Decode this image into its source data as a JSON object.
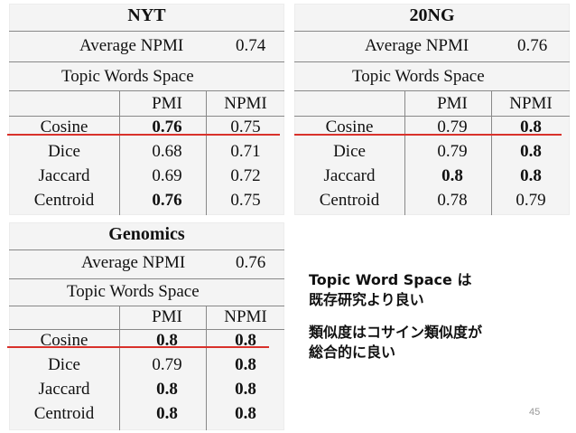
{
  "tables": [
    {
      "title": "NYT",
      "average_label": "Average NPMI",
      "average_value": "0.74",
      "space_label": "Topic Words Space",
      "col_pmi": "PMI",
      "col_npmi": "NPMI",
      "rows": [
        {
          "name": "Cosine",
          "pmi": "0.76",
          "npmi": "0.75"
        },
        {
          "name": "Dice",
          "pmi": "0.68",
          "npmi": "0.71"
        },
        {
          "name": "Jaccard",
          "pmi": "0.69",
          "npmi": "0.72"
        },
        {
          "name": "Centroid",
          "pmi": "0.76",
          "npmi": "0.75"
        }
      ]
    },
    {
      "title": "20NG",
      "average_label": "Average NPMI",
      "average_value": "0.76",
      "space_label": "Topic Words Space",
      "col_pmi": "PMI",
      "col_npmi": "NPMI",
      "rows": [
        {
          "name": "Cosine",
          "pmi": "0.79",
          "npmi": "0.8"
        },
        {
          "name": "Dice",
          "pmi": "0.79",
          "npmi": "0.8"
        },
        {
          "name": "Jaccard",
          "pmi": "0.8",
          "npmi": "0.8"
        },
        {
          "name": "Centroid",
          "pmi": "0.78",
          "npmi": "0.79"
        }
      ]
    },
    {
      "title": "Genomics",
      "average_label": "Average NPMI",
      "average_value": "0.76",
      "space_label": "Topic Words Space",
      "col_pmi": "PMI",
      "col_npmi": "NPMI",
      "rows": [
        {
          "name": "Cosine",
          "pmi": "0.8",
          "npmi": "0.8"
        },
        {
          "name": "Dice",
          "pmi": "0.79",
          "npmi": "0.8"
        },
        {
          "name": "Jaccard",
          "pmi": "0.8",
          "npmi": "0.8"
        },
        {
          "name": "Centroid",
          "pmi": "0.8",
          "npmi": "0.8"
        }
      ]
    }
  ],
  "notes": {
    "line1": "Topic Word Space は",
    "line2": "既存研究より良い",
    "line3": "類似度はコサイン類似度が",
    "line4": "総合的に良い"
  },
  "page_number": "45",
  "colors": {
    "underline": "#d9312b"
  }
}
